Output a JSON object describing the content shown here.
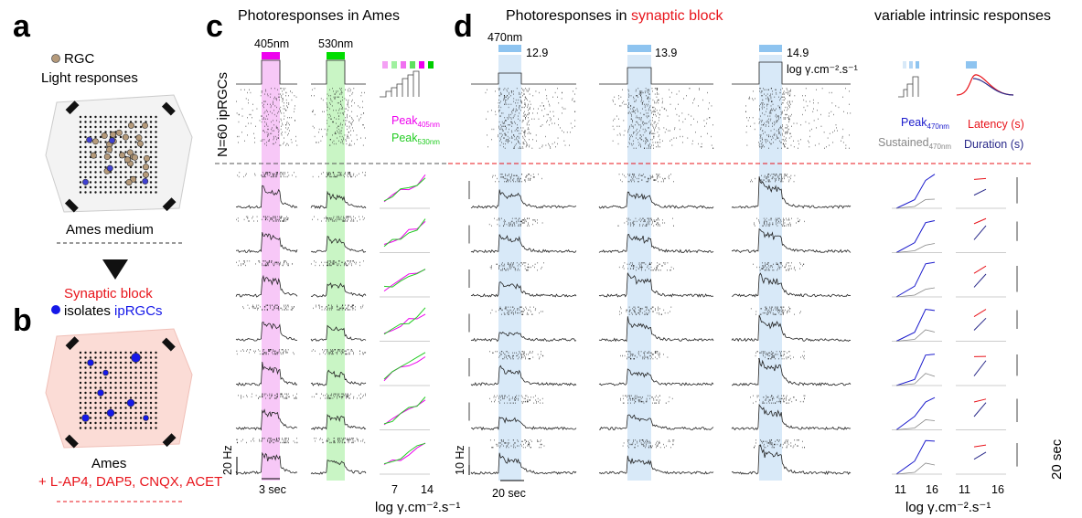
{
  "panel_a": {
    "label": "a",
    "legend": "RGC",
    "subtitle": "Light responses",
    "condition": "Ames medium"
  },
  "panel_b": {
    "label": "b",
    "title": "Synaptic block",
    "legend_prefix": "isolates ",
    "legend_cells": "ipRGCs",
    "condition": "Ames",
    "drugs": "+ L-AP4, DAP5, CNQX, ACET"
  },
  "panel_c": {
    "label": "c",
    "title": "Photoresponses in Ames",
    "stim_1": "405nm",
    "stim_2": "530nm",
    "y_label": "N=60 ipRGCs",
    "legend_1": {
      "text": "Peak",
      "sub": "405nm"
    },
    "legend_2": {
      "text": "Peak",
      "sub": "530nm"
    },
    "scale_y": "20 Hz",
    "scale_x": "3 sec",
    "x_ticks": [
      "7",
      "14"
    ],
    "x_label": "log γ.cm⁻².s⁻¹"
  },
  "panel_d": {
    "label": "d",
    "title_prefix": "Photoresponses in ",
    "title_highlight": "synaptic block",
    "stim": "470nm",
    "intensities": [
      "12.9",
      "13.9",
      "14.9"
    ],
    "intensity_unit": "log γ.cm⁻².s⁻¹",
    "scale_y": "10 Hz",
    "scale_x": "20 sec"
  },
  "panel_right": {
    "title": "variable intrinsic responses",
    "legend_1": {
      "text": "Peak",
      "sub": "470nm"
    },
    "legend_2": {
      "text": "Sustained",
      "sub": "470nm"
    },
    "legend_3": "Latency (s)",
    "legend_4": "Duration (s)",
    "x_ticks": [
      "11",
      "16",
      "11",
      "16"
    ],
    "x_label": "log γ.cm⁻².s⁻¹",
    "scale": "20 sec"
  }
}
